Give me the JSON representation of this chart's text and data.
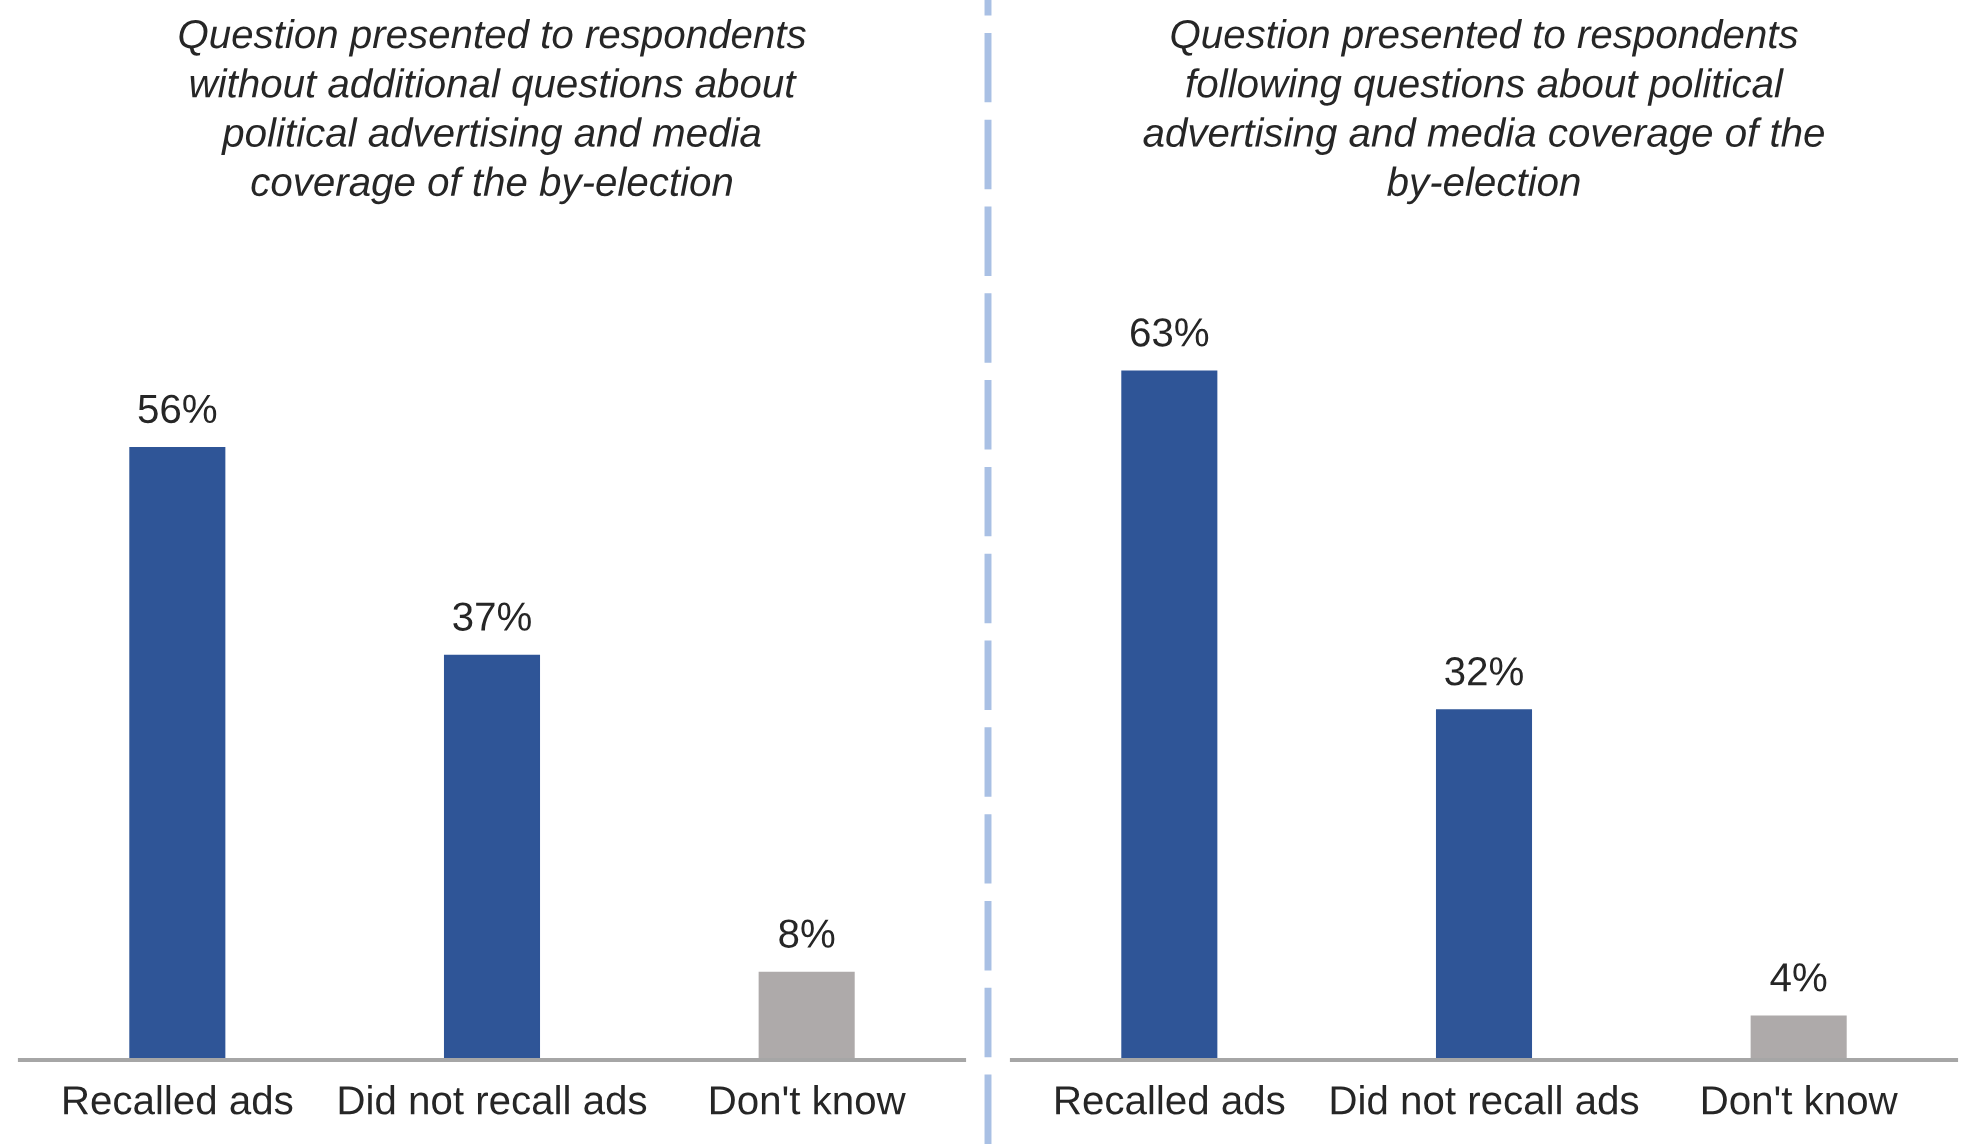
{
  "chart_data": [
    {
      "type": "bar",
      "title": "Question presented to respondents\nwithout additional questions about\npolitical advertising and media\ncoverage of the by-election",
      "categories": [
        "Recalled ads",
        "Did not recall ads",
        "Don't know"
      ],
      "values": [
        56,
        37,
        8
      ],
      "colors": [
        "#2f5597",
        "#2f5597",
        "#aeaaaa"
      ],
      "value_labels": [
        "56%",
        "37%",
        "8%"
      ],
      "tick_labels": "x"
    },
    {
      "type": "bar",
      "title": "Question presented to respondents\nfollowing questions about political\nadvertising and media coverage of the\nby-election",
      "categories": [
        "Recalled ads",
        "Did not recall ads",
        "Don't know"
      ],
      "values": [
        63,
        32,
        4
      ],
      "colors": [
        "#2f5597",
        "#2f5597",
        "#aeaaaa"
      ],
      "value_labels": [
        "63%",
        "32%",
        "4%"
      ],
      "tick_labels": "x"
    }
  ]
}
